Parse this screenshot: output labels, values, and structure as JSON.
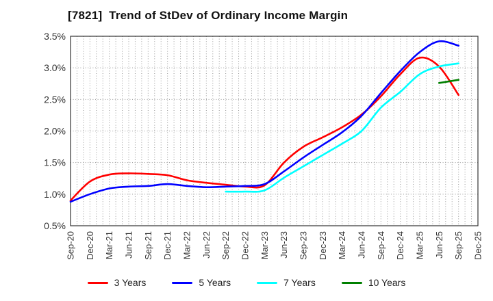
{
  "window": {
    "title": "[7821]  Trend of StDev of Ordinary Income Margin"
  },
  "colors": {
    "background": "#ffffff",
    "grid": "#999999",
    "frame": "#333333",
    "tick_text": "#333333",
    "title_text": "#111111"
  },
  "chart_data": {
    "type": "line",
    "title": "[7821]  Trend of StDev of Ordinary Income Margin",
    "xlabel": "",
    "ylabel": "",
    "ylim": [
      0.5,
      3.5
    ],
    "y_tick_labels": [
      "0.5%",
      "1.0%",
      "1.5%",
      "2.0%",
      "2.5%",
      "3.0%",
      "3.5%"
    ],
    "grid": "dotted; horizontal every 0.5%, vertical monthly",
    "legend_position": "bottom",
    "categories": [
      "Sep-20",
      "Dec-20",
      "Mar-21",
      "Jun-21",
      "Sep-21",
      "Dec-21",
      "Mar-22",
      "Jun-22",
      "Sep-22",
      "Dec-22",
      "Mar-23",
      "Jun-23",
      "Sep-23",
      "Dec-23",
      "Mar-24",
      "Jun-24",
      "Sep-24",
      "Dec-24",
      "Mar-25",
      "Jun-25",
      "Sep-25",
      "Dec-25"
    ],
    "series": [
      {
        "name": "3 Years",
        "color": "#ff0000",
        "values": [
          0.9,
          1.2,
          1.31,
          1.33,
          1.32,
          1.3,
          1.22,
          1.18,
          1.15,
          1.12,
          1.14,
          1.5,
          1.75,
          1.9,
          2.06,
          2.26,
          2.55,
          2.9,
          3.16,
          3.02,
          2.57,
          null
        ]
      },
      {
        "name": "5 Years",
        "color": "#0000ff",
        "values": [
          0.88,
          1.0,
          1.09,
          1.12,
          1.13,
          1.16,
          1.13,
          1.11,
          1.12,
          1.13,
          1.16,
          1.36,
          1.58,
          1.78,
          1.98,
          2.24,
          2.6,
          2.95,
          3.25,
          3.42,
          3.35,
          null
        ]
      },
      {
        "name": "7 Years",
        "color": "#00ffff",
        "values": [
          null,
          null,
          null,
          null,
          null,
          null,
          null,
          null,
          1.04,
          1.04,
          1.06,
          1.26,
          1.44,
          1.62,
          1.8,
          2.0,
          2.37,
          2.62,
          2.9,
          3.02,
          3.07,
          null
        ]
      },
      {
        "name": "10 Years",
        "color": "#008000",
        "values": [
          null,
          null,
          null,
          null,
          null,
          null,
          null,
          null,
          null,
          null,
          null,
          null,
          null,
          null,
          null,
          null,
          null,
          null,
          null,
          2.76,
          2.81,
          null
        ]
      }
    ]
  }
}
